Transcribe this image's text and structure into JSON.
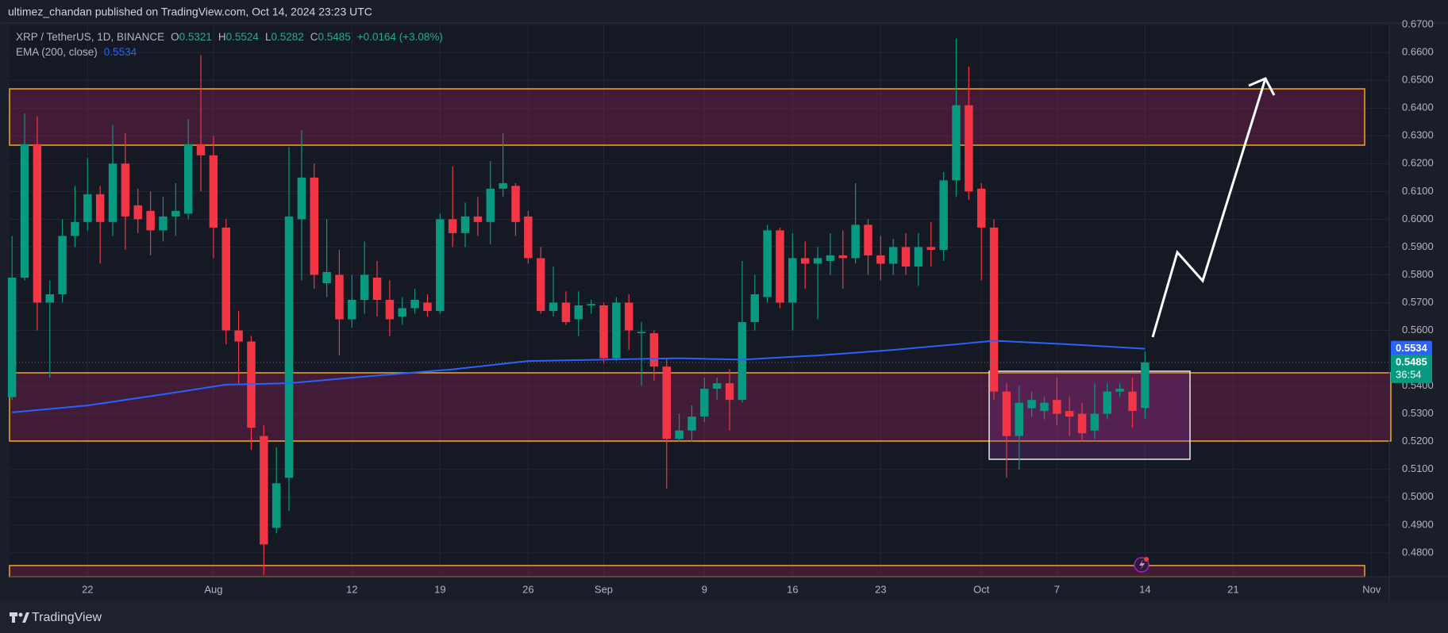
{
  "header": {
    "published": "ultimez_chandan published on TradingView.com, Oct 14, 2024 23:23 UTC"
  },
  "footer": {
    "brand": "TradingView"
  },
  "chart_data": {
    "type": "candlestick",
    "legend": {
      "title": "XRP / TetherUS, 1D, BINANCE",
      "o": "O",
      "h": "H",
      "l": "L",
      "c": "C",
      "change": "+0.0164 (+3.08%)",
      "ema_title": "EMA (200, close)"
    },
    "countdown": "36:54",
    "up_color": "#089981",
    "down_color": "#f23645",
    "x": [
      0,
      1,
      2,
      3,
      4,
      5,
      6,
      7,
      8,
      9,
      10,
      11,
      12,
      13,
      14,
      15,
      16,
      17,
      18,
      19,
      20,
      21,
      22,
      23,
      24,
      25,
      26,
      27,
      28,
      29,
      30,
      31,
      32,
      33,
      34,
      35,
      36,
      37,
      38,
      39,
      40,
      41,
      42,
      43,
      44,
      45,
      46,
      47,
      48,
      49,
      50,
      51,
      52,
      53,
      54,
      55,
      56,
      57,
      58,
      59,
      60,
      61,
      62,
      63,
      64,
      65,
      66,
      67,
      68,
      69,
      70,
      71,
      72,
      73,
      74,
      75,
      76,
      77,
      78,
      79,
      80,
      81,
      82,
      83,
      84,
      85,
      86,
      87,
      88,
      89,
      90
    ],
    "open": [
      0.536,
      0.579,
      0.627,
      0.57,
      0.573,
      0.594,
      0.599,
      0.609,
      0.599,
      0.62,
      0.605,
      0.603,
      0.596,
      0.601,
      0.602,
      0.627,
      0.623,
      0.597,
      0.56,
      0.556,
      0.522,
      0.489,
      0.507,
      0.6,
      0.615,
      0.577,
      0.58,
      0.564,
      0.571,
      0.579,
      0.571,
      0.565,
      0.568,
      0.57,
      0.567,
      0.6,
      0.595,
      0.601,
      0.599,
      0.611,
      0.612,
      0.601,
      0.586,
      0.567,
      0.57,
      0.564,
      0.569,
      0.569,
      0.55,
      0.57,
      0.559,
      0.559,
      0.547,
      0.521,
      0.524,
      0.529,
      0.539,
      0.541,
      0.535,
      0.563,
      0.572,
      0.596,
      0.57,
      0.586,
      0.584,
      0.585,
      0.587,
      0.586,
      0.598,
      0.587,
      0.584,
      0.59,
      0.583,
      0.59,
      0.589,
      0.614,
      0.641,
      0.611,
      0.597,
      0.538,
      0.522,
      0.532,
      0.531,
      0.535,
      0.531,
      0.53,
      0.524,
      0.53,
      0.538,
      0.538,
      0.5321
    ],
    "high": [
      0.594,
      0.638,
      0.637,
      0.578,
      0.6,
      0.612,
      0.622,
      0.612,
      0.634,
      0.631,
      0.611,
      0.61,
      0.608,
      0.613,
      0.636,
      0.659,
      0.63,
      0.6,
      0.567,
      0.558,
      0.526,
      0.518,
      0.626,
      0.632,
      0.62,
      0.6,
      0.589,
      0.58,
      0.592,
      0.585,
      0.578,
      0.572,
      0.575,
      0.573,
      0.602,
      0.619,
      0.606,
      0.608,
      0.621,
      0.631,
      0.613,
      0.603,
      0.59,
      0.583,
      0.574,
      0.574,
      0.571,
      0.57,
      0.572,
      0.573,
      0.563,
      0.56,
      0.55,
      0.53,
      0.533,
      0.543,
      0.543,
      0.546,
      0.585,
      0.58,
      0.598,
      0.597,
      0.595,
      0.592,
      0.59,
      0.595,
      0.596,
      0.613,
      0.6,
      0.594,
      0.593,
      0.595,
      0.595,
      0.599,
      0.617,
      0.665,
      0.655,
      0.613,
      0.6,
      0.541,
      0.54,
      0.538,
      0.536,
      0.543,
      0.536,
      0.534,
      0.541,
      0.541,
      0.541,
      0.543,
      0.5524
    ],
    "low": [
      0.535,
      0.578,
      0.56,
      0.543,
      0.57,
      0.59,
      0.596,
      0.584,
      0.594,
      0.589,
      0.595,
      0.587,
      0.592,
      0.594,
      0.6,
      0.61,
      0.586,
      0.555,
      0.541,
      0.517,
      0.472,
      0.487,
      0.495,
      0.578,
      0.575,
      0.572,
      0.551,
      0.561,
      0.566,
      0.565,
      0.558,
      0.562,
      0.566,
      0.565,
      0.566,
      0.59,
      0.59,
      0.594,
      0.591,
      0.608,
      0.594,
      0.584,
      0.566,
      0.565,
      0.562,
      0.558,
      0.566,
      0.548,
      0.549,
      0.553,
      0.54,
      0.542,
      0.503,
      0.52,
      0.52,
      0.527,
      0.535,
      0.524,
      0.534,
      0.56,
      0.57,
      0.568,
      0.56,
      0.575,
      0.564,
      0.58,
      0.575,
      0.584,
      0.58,
      0.578,
      0.58,
      0.58,
      0.576,
      0.583,
      0.585,
      0.608,
      0.607,
      0.578,
      0.535,
      0.507,
      0.51,
      0.529,
      0.528,
      0.526,
      0.522,
      0.52,
      0.521,
      0.528,
      0.536,
      0.525,
      0.5282
    ],
    "close": [
      0.579,
      0.627,
      0.57,
      0.573,
      0.594,
      0.599,
      0.609,
      0.599,
      0.62,
      0.601,
      0.6,
      0.596,
      0.601,
      0.603,
      0.627,
      0.623,
      0.597,
      0.56,
      0.556,
      0.525,
      0.483,
      0.505,
      0.601,
      0.615,
      0.58,
      0.581,
      0.564,
      0.571,
      0.58,
      0.571,
      0.564,
      0.568,
      0.571,
      0.567,
      0.6,
      0.595,
      0.601,
      0.599,
      0.611,
      0.613,
      0.599,
      0.586,
      0.567,
      0.57,
      0.563,
      0.569,
      0.5695,
      0.55,
      0.57,
      0.56,
      0.5595,
      0.547,
      0.521,
      0.524,
      0.529,
      0.539,
      0.541,
      0.535,
      0.563,
      0.573,
      0.596,
      0.57,
      0.586,
      0.584,
      0.586,
      0.587,
      0.586,
      0.598,
      0.587,
      0.584,
      0.59,
      0.583,
      0.59,
      0.589,
      0.614,
      0.641,
      0.61,
      0.597,
      0.538,
      0.522,
      0.534,
      0.535,
      0.534,
      0.53,
      0.529,
      0.523,
      0.53,
      0.538,
      0.539,
      0.531,
      0.5485
    ],
    "ema": {
      "color": "#2962ff",
      "x": [
        0,
        6,
        12,
        17,
        22,
        27,
        35,
        41,
        47,
        53,
        58,
        64,
        70,
        75,
        78,
        84,
        90
      ],
      "values": [
        0.5305,
        0.533,
        0.537,
        0.5405,
        0.541,
        0.543,
        0.546,
        0.549,
        0.5495,
        0.55,
        0.5495,
        0.551,
        0.553,
        0.555,
        0.5563,
        0.555,
        0.5534
      ]
    },
    "xlim": [
      -0.2,
      109.4
    ],
    "xticks": [
      {
        "value": 6,
        "label": "22"
      },
      {
        "value": 16,
        "label": "Aug"
      },
      {
        "value": 27,
        "label": "12"
      },
      {
        "value": 34,
        "label": "19"
      },
      {
        "value": 41,
        "label": "26"
      },
      {
        "value": 47,
        "label": "Sep"
      },
      {
        "value": 55,
        "label": "9"
      },
      {
        "value": 62,
        "label": "16"
      },
      {
        "value": 69,
        "label": "23"
      },
      {
        "value": 77,
        "label": "Oct"
      },
      {
        "value": 83,
        "label": "7"
      },
      {
        "value": 90,
        "label": "14"
      },
      {
        "value": 97,
        "label": "21"
      },
      {
        "value": 108,
        "label": "Nov"
      }
    ],
    "ylim": [
      0.4714,
      0.6706
    ],
    "yticks": [
      {
        "value": 0.48,
        "label": "0.4800"
      },
      {
        "value": 0.49,
        "label": "0.4900"
      },
      {
        "value": 0.5,
        "label": "0.5000"
      },
      {
        "value": 0.51,
        "label": "0.5100"
      },
      {
        "value": 0.52,
        "label": "0.5200"
      },
      {
        "value": 0.53,
        "label": "0.5300"
      },
      {
        "value": 0.54,
        "label": "0.5400"
      },
      {
        "value": 0.56,
        "label": "0.5600"
      },
      {
        "value": 0.57,
        "label": "0.5700"
      },
      {
        "value": 0.58,
        "label": "0.5800"
      },
      {
        "value": 0.59,
        "label": "0.5900"
      },
      {
        "value": 0.6,
        "label": "0.6000"
      },
      {
        "value": 0.61,
        "label": "0.6100"
      },
      {
        "value": 0.62,
        "label": "0.6200"
      },
      {
        "value": 0.63,
        "label": "0.6300"
      },
      {
        "value": 0.64,
        "label": "0.6400"
      },
      {
        "value": 0.65,
        "label": "0.6500"
      },
      {
        "value": 0.66,
        "label": "0.6600"
      },
      {
        "value": 0.67,
        "label": "0.6700"
      }
    ],
    "grid": true
  }
}
